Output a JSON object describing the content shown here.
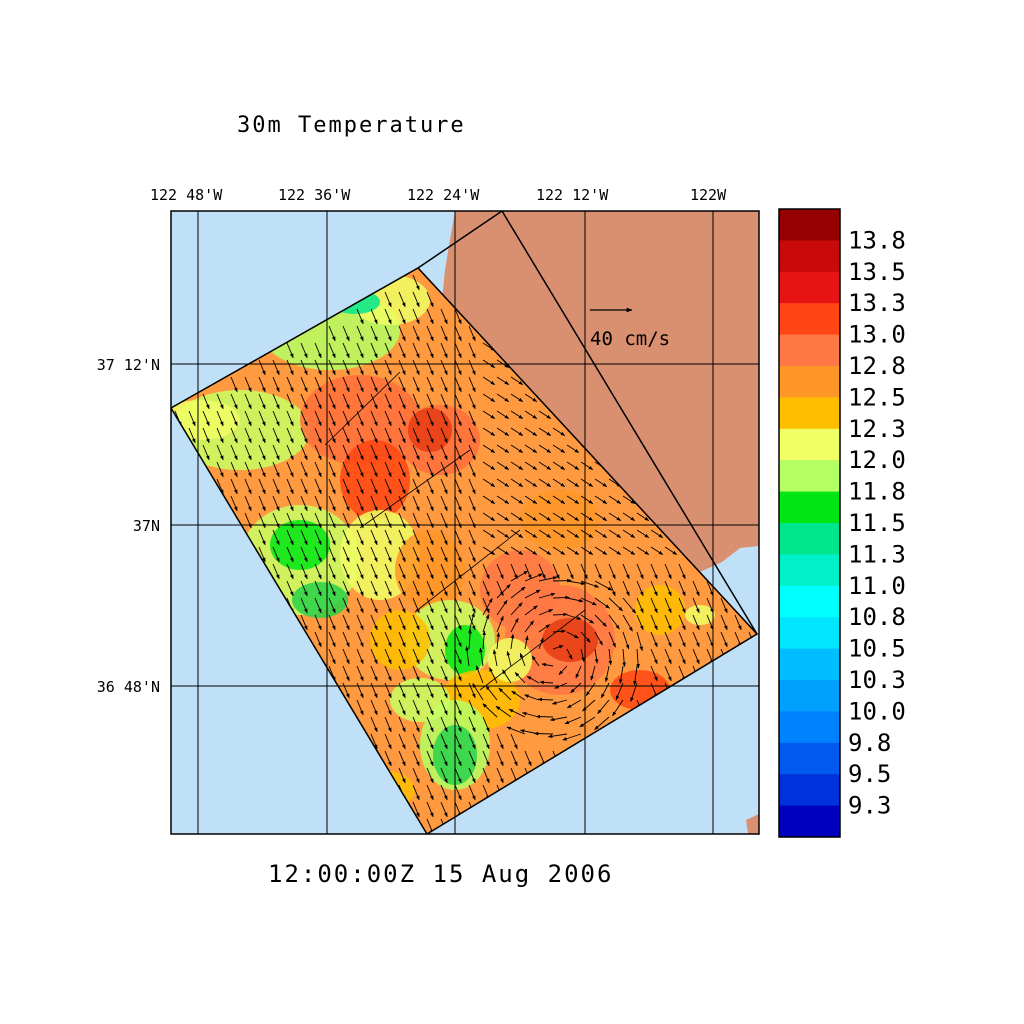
{
  "title": "30m Temperature",
  "timestamp": "12:00:00Z  15 Aug 2006",
  "reference_vector": {
    "label": "40 cm/s",
    "speed_cm_s": 40
  },
  "longitude_labels": [
    "122 48'W",
    "122 36'W",
    "122 24'W",
    "122 12'W",
    "122W"
  ],
  "latitude_labels": [
    "37 12'N",
    "37N",
    "36 48'N"
  ],
  "colorbar": {
    "labels": [
      "13.8",
      "13.5",
      "13.3",
      "13.0",
      "12.8",
      "12.5",
      "12.3",
      "12.0",
      "11.8",
      "11.5",
      "11.3",
      "11.0",
      "10.8",
      "10.5",
      "10.3",
      "10.0",
      "9.8",
      "9.5",
      "9.3"
    ],
    "colors": [
      "#960000",
      "#c80a0a",
      "#e61414",
      "#ff4614",
      "#ff7846",
      "#ff9628",
      "#ffbe00",
      "#f0ff64",
      "#b4ff64",
      "#00e614",
      "#00e68c",
      "#00f0c8",
      "#00ffff",
      "#00e6ff",
      "#00beff",
      "#00a0ff",
      "#0082ff",
      "#005af0",
      "#0032dc",
      "#0000be"
    ]
  },
  "colors": {
    "ocean": "#c0e0f8",
    "land": "#d99070",
    "arrow": "#000000"
  }
}
